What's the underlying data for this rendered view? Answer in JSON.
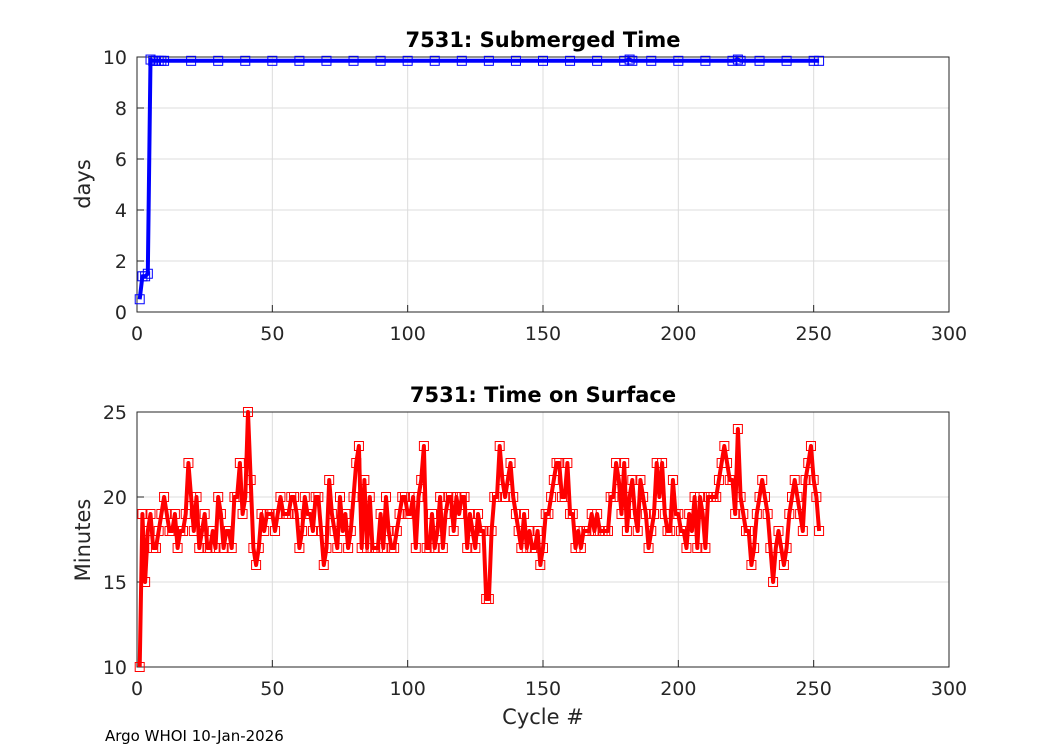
{
  "footer": "Argo WHOI 10-Jan-2026",
  "chart_data": [
    {
      "type": "line",
      "title": "7531: Submerged Time",
      "xlabel": "",
      "ylabel": "days",
      "xlim": [
        0,
        300
      ],
      "ylim": [
        0,
        10
      ],
      "xticks": [
        "0",
        "50",
        "100",
        "150",
        "200",
        "250",
        "300"
      ],
      "yticks": [
        "0",
        "2",
        "4",
        "6",
        "8",
        "10"
      ],
      "grid": true,
      "marker": "square",
      "color": "#0000ff",
      "series": [
        {
          "x": [
            1,
            2,
            3,
            4,
            5,
            6,
            7,
            8,
            9,
            10,
            20,
            30,
            40,
            50,
            60,
            70,
            80,
            90,
            100,
            110,
            120,
            130,
            140,
            150,
            160,
            170,
            180,
            182,
            183,
            190,
            200,
            210,
            220,
            222,
            223,
            230,
            240,
            250,
            252
          ],
          "y": [
            0.5,
            1.4,
            1.4,
            1.5,
            9.9,
            9.85,
            9.85,
            9.85,
            9.85,
            9.85,
            9.85,
            9.85,
            9.85,
            9.85,
            9.85,
            9.85,
            9.85,
            9.85,
            9.85,
            9.85,
            9.85,
            9.85,
            9.85,
            9.85,
            9.85,
            9.85,
            9.85,
            9.9,
            9.85,
            9.85,
            9.85,
            9.85,
            9.85,
            9.9,
            9.85,
            9.85,
            9.85,
            9.85,
            9.85
          ]
        }
      ]
    },
    {
      "type": "line",
      "title": "7531: Time on Surface",
      "xlabel": "Cycle #",
      "ylabel": "Minutes",
      "xlim": [
        0,
        300
      ],
      "ylim": [
        10,
        25
      ],
      "xticks": [
        "0",
        "50",
        "100",
        "150",
        "200",
        "250",
        "300"
      ],
      "yticks": [
        "10",
        "15",
        "20",
        "25"
      ],
      "grid": true,
      "marker": "square",
      "color": "#ff0000",
      "series": [
        {
          "x": [
            1,
            2,
            3,
            4,
            5,
            6,
            7,
            8,
            9,
            10,
            11,
            12,
            13,
            14,
            15,
            16,
            17,
            18,
            19,
            20,
            21,
            22,
            23,
            24,
            25,
            26,
            27,
            28,
            29,
            30,
            31,
            32,
            33,
            34,
            35,
            36,
            37,
            38,
            39,
            40,
            41,
            42,
            43,
            44,
            45,
            46,
            47,
            48,
            49,
            50,
            51,
            52,
            53,
            54,
            55,
            56,
            57,
            58,
            59,
            60,
            61,
            62,
            63,
            64,
            65,
            66,
            67,
            68,
            69,
            70,
            71,
            72,
            73,
            74,
            75,
            76,
            77,
            78,
            79,
            80,
            81,
            82,
            83,
            84,
            85,
            86,
            87,
            88,
            89,
            90,
            91,
            92,
            93,
            94,
            95,
            96,
            97,
            98,
            99,
            100,
            101,
            102,
            103,
            104,
            105,
            106,
            107,
            108,
            109,
            110,
            111,
            112,
            113,
            114,
            115,
            116,
            117,
            118,
            119,
            120,
            121,
            122,
            123,
            124,
            125,
            126,
            127,
            128,
            129,
            130,
            131,
            132,
            133,
            134,
            135,
            136,
            137,
            138,
            139,
            140,
            141,
            142,
            143,
            144,
            145,
            146,
            147,
            148,
            149,
            150,
            151,
            152,
            153,
            154,
            155,
            156,
            157,
            158,
            159,
            160,
            161,
            162,
            163,
            164,
            165,
            166,
            167,
            168,
            169,
            170,
            171,
            172,
            173,
            174,
            175,
            176,
            177,
            178,
            179,
            180,
            181,
            182,
            183,
            184,
            185,
            186,
            187,
            188,
            189,
            190,
            191,
            192,
            193,
            194,
            195,
            196,
            197,
            198,
            199,
            200,
            201,
            202,
            203,
            204,
            205,
            206,
            207,
            208,
            209,
            210,
            211,
            212,
            213,
            214,
            215,
            216,
            217,
            218,
            219,
            220,
            221,
            222,
            223,
            224,
            225,
            226,
            227,
            228,
            229,
            230,
            231,
            232,
            233,
            234,
            235,
            236,
            237,
            238,
            239,
            240,
            241,
            242,
            243,
            244,
            245,
            246,
            247,
            248,
            249,
            250,
            251,
            252
          ],
          "y": [
            10,
            19,
            15,
            18,
            19,
            17,
            17,
            18,
            19,
            20,
            19,
            18,
            18,
            19,
            17,
            18,
            18,
            19,
            22,
            20,
            18,
            20,
            17,
            18,
            19,
            17,
            17,
            18,
            17,
            20,
            19,
            17,
            18,
            18,
            17,
            20,
            20,
            22,
            19,
            20,
            25,
            21,
            17,
            16,
            17,
            19,
            18,
            19,
            19,
            19,
            18,
            19,
            20,
            19,
            19,
            19,
            20,
            20,
            19,
            17,
            18,
            20,
            19,
            19,
            18,
            20,
            20,
            18,
            16,
            17,
            21,
            19,
            18,
            17,
            20,
            18,
            19,
            17,
            18,
            20,
            22,
            23,
            17,
            21,
            17,
            20,
            17,
            17,
            17,
            19,
            17,
            20,
            18,
            17,
            17,
            18,
            19,
            20,
            20,
            19,
            19,
            20,
            17,
            20,
            21,
            23,
            17,
            17,
            19,
            17,
            18,
            20,
            17,
            19,
            20,
            20,
            18,
            20,
            19,
            20,
            20,
            17,
            19,
            18,
            17,
            19,
            18,
            18,
            14,
            14,
            18,
            20,
            20,
            23,
            21,
            20,
            21,
            22,
            20,
            19,
            18,
            17,
            19,
            17,
            18,
            17,
            17,
            18,
            16,
            17,
            19,
            19,
            20,
            21,
            22,
            22,
            20,
            20,
            22,
            19,
            19,
            17,
            18,
            17,
            18,
            18,
            18,
            19,
            18,
            19,
            18,
            18,
            18,
            18,
            20,
            20,
            22,
            21,
            19,
            22,
            18,
            20,
            21,
            19,
            18,
            21,
            20,
            19,
            17,
            18,
            19,
            22,
            20,
            22,
            19,
            18,
            18,
            21,
            19,
            19,
            18,
            18,
            17,
            19,
            18,
            20,
            17,
            20,
            19,
            17,
            20,
            20,
            20,
            20,
            21,
            22,
            23,
            22,
            21,
            21,
            19,
            24,
            20,
            19,
            18,
            18,
            16,
            17,
            19,
            20,
            21,
            20,
            19,
            17,
            15,
            17,
            18,
            17,
            16,
            17,
            19,
            20,
            21,
            20,
            19,
            18,
            21,
            22,
            23,
            21,
            20,
            18
          ]
        }
      ]
    }
  ]
}
